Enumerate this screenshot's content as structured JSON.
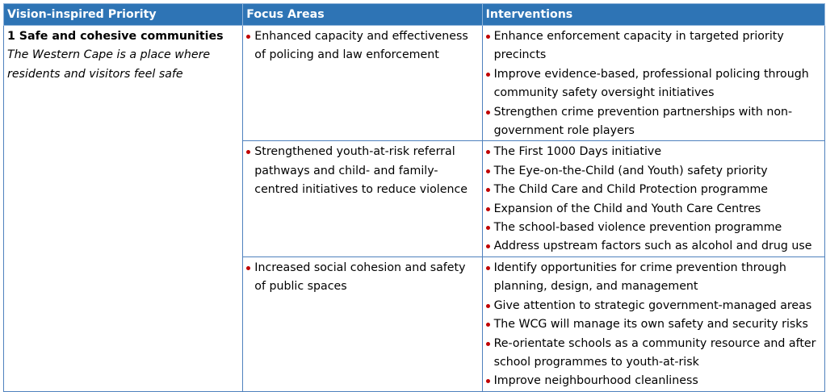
{
  "headers": {
    "vision": "Vision-inspired Priority",
    "focus": "Focus Areas",
    "interventions": "Interventions"
  },
  "priority": {
    "title": "1  Safe and cohesive communities",
    "description": "The Western Cape is a place where residents and visitors feel safe"
  },
  "rows": [
    {
      "focus": "Enhanced capacity and effectiveness of policing and law enforcement",
      "interventions": [
        "Enhance enforcement capacity in targeted priority precincts",
        "Improve evidence-based, professional policing through community safety oversight initiatives",
        "Strengthen crime prevention partnerships with non-government role players"
      ]
    },
    {
      "focus": "Strengthened youth-at-risk referral pathways and child- and family-centred initiatives to reduce violence",
      "interventions": [
        "The First 1000 Days initiative",
        "The Eye-on-the-Child (and Youth)  safety priority",
        "The Child Care and Child Protection programme",
        "Expansion of the Child and Youth Care Centres",
        "The school-based violence prevention programme",
        "Address upstream factors such as alcohol and drug use"
      ]
    },
    {
      "focus": "Increased social cohesion and safety of public spaces",
      "interventions": [
        "Identify opportunities for crime prevention through planning, design, and management",
        "Give attention to strategic government-managed areas",
        "The WCG will manage its own safety and security risks",
        "Re-orientate schools as a community resource and after school programmes to youth-at-risk",
        "Improve neighbourhood cleanliness"
      ]
    }
  ],
  "colors": {
    "header_bg": "#2e74b5",
    "border": "#4f81bd",
    "bullet": "#c00000"
  }
}
